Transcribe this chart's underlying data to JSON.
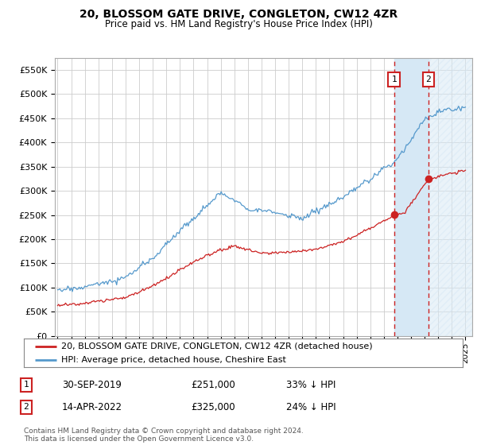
{
  "title": "20, BLOSSOM GATE DRIVE, CONGLETON, CW12 4ZR",
  "subtitle": "Price paid vs. HM Land Registry's House Price Index (HPI)",
  "ylabel_ticks": [
    "£0",
    "£50K",
    "£100K",
    "£150K",
    "£200K",
    "£250K",
    "£300K",
    "£350K",
    "£400K",
    "£450K",
    "£500K",
    "£550K"
  ],
  "ytick_values": [
    0,
    50000,
    100000,
    150000,
    200000,
    250000,
    300000,
    350000,
    400000,
    450000,
    500000,
    550000
  ],
  "ylim": [
    0,
    575000
  ],
  "xlim_start": 1994.8,
  "xlim_end": 2025.5,
  "hpi_color": "#5599cc",
  "hpi_fill_color": "#d6e8f5",
  "price_color": "#cc2222",
  "vline_color": "#cc2222",
  "vline_style": "--",
  "purchase1_x": 2019.75,
  "purchase1_y": 251000,
  "purchase2_x": 2022.28,
  "purchase2_y": 325000,
  "legend_label1": "20, BLOSSOM GATE DRIVE, CONGLETON, CW12 4ZR (detached house)",
  "legend_label2": "HPI: Average price, detached house, Cheshire East",
  "annotation1_date": "30-SEP-2019",
  "annotation1_price": "£251,000",
  "annotation1_hpi": "33% ↓ HPI",
  "annotation2_date": "14-APR-2022",
  "annotation2_price": "£325,000",
  "annotation2_hpi": "24% ↓ HPI",
  "footer": "Contains HM Land Registry data © Crown copyright and database right 2024.\nThis data is licensed under the Open Government Licence v3.0.",
  "background_color": "#ffffff",
  "grid_color": "#cccccc"
}
